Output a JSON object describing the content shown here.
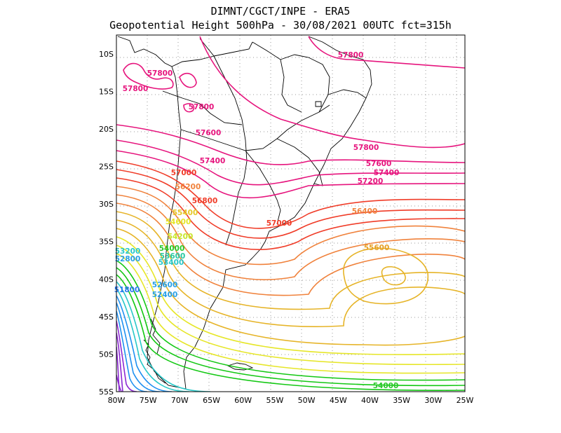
{
  "title": {
    "line1": "DIMNT/CGCT/INPE -  ERA5",
    "line2": "Geopotential Height 500hPa -  30/08/2021 00UTC fct=315h"
  },
  "axes": {
    "x_ticks": [
      "80W",
      "75W",
      "70W",
      "65W",
      "60W",
      "55W",
      "50W",
      "45W",
      "40W",
      "35W",
      "30W",
      "25W"
    ],
    "y_ticks": [
      "10S",
      "15S",
      "20S",
      "25S",
      "30S",
      "35S",
      "40S",
      "45S",
      "50S",
      "55S"
    ],
    "lon_range": [
      -80,
      -25
    ],
    "lat_range": [
      -55,
      -7.5
    ],
    "grid": "dotted"
  },
  "contour_labels": [
    {
      "text": "57800",
      "color": "#e6147d"
    },
    {
      "text": "57800",
      "color": "#e6147d"
    },
    {
      "text": "57800",
      "color": "#e6147d"
    },
    {
      "text": "57800",
      "color": "#e6147d"
    },
    {
      "text": "57800",
      "color": "#e6147d"
    },
    {
      "text": "57600",
      "color": "#e6147d"
    },
    {
      "text": "57600",
      "color": "#e6147d"
    },
    {
      "text": "57400",
      "color": "#e6147d"
    },
    {
      "text": "57400",
      "color": "#e6147d"
    },
    {
      "text": "57200",
      "color": "#e6147d"
    },
    {
      "text": "57000",
      "color": "#f03c28"
    },
    {
      "text": "57000",
      "color": "#f03c28"
    },
    {
      "text": "56800",
      "color": "#f03c28"
    },
    {
      "text": "56400",
      "color": "#f0823c"
    },
    {
      "text": "56200",
      "color": "#f0823c"
    },
    {
      "text": "55600",
      "color": "#e6a028"
    },
    {
      "text": "55400",
      "color": "#e6c828"
    },
    {
      "text": "54600",
      "color": "#e6e628"
    },
    {
      "text": "54200",
      "color": "#c8e628"
    },
    {
      "text": "54000",
      "color": "#28c828"
    },
    {
      "text": "54000",
      "color": "#28c828"
    },
    {
      "text": "53600",
      "color": "#28c8a0"
    },
    {
      "text": "53400",
      "color": "#28c8c8"
    },
    {
      "text": "53200",
      "color": "#28c8c8"
    },
    {
      "text": "52800",
      "color": "#28a0e6"
    },
    {
      "text": "52600",
      "color": "#28a0e6"
    },
    {
      "text": "52400",
      "color": "#28a0e6"
    },
    {
      "text": "51800",
      "color": "#2878f0"
    }
  ],
  "colors": {
    "pink": "#e6147d",
    "red": "#f03c28",
    "orange": "#f0823c",
    "gold": "#e6b428",
    "yellow": "#e6e628",
    "green": "#14c814",
    "cyan": "#28c8c8",
    "blue": "#1e90f0",
    "purple": "#8c28d2"
  }
}
